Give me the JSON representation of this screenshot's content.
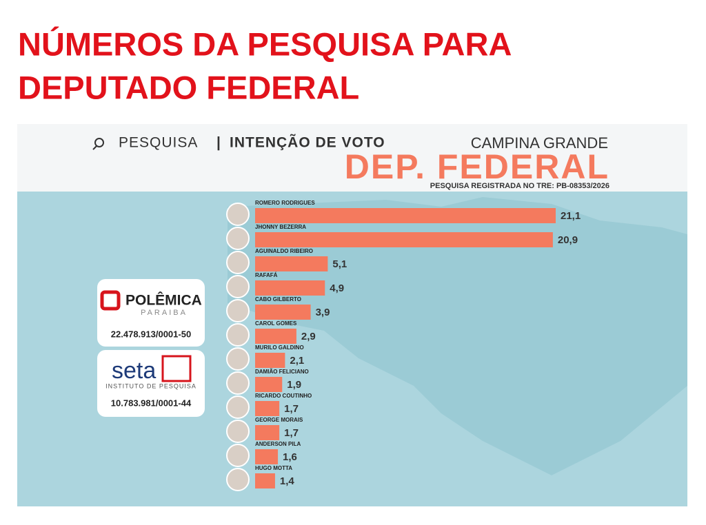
{
  "header": {
    "title_lines": [
      "NÚMEROS DA PESQUISA PARA",
      "DEPUTADO FEDERAL"
    ]
  },
  "infographic": {
    "search_label": "PESQUISA",
    "separator": "|",
    "subtitle": "INTENÇÃO DE VOTO",
    "city": "CAMPINA GRANDE",
    "office": "DEP. FEDERAL",
    "registration": "PESQUISA REGISTRADA NO TRE: PB-08353/2026",
    "sponsors": [
      {
        "name": "POLÊMICA",
        "sub": "PARAIBA",
        "id": "22.478.913/0001-50"
      },
      {
        "name": "seta",
        "sub": "INSTITUTO DE PESQUISA",
        "id": "10.783.981/0001-44"
      }
    ]
  },
  "chart_data": {
    "type": "bar",
    "orientation": "horizontal",
    "categories": [
      "ROMERO RODRIGUES",
      "JHONNY BEZERRA",
      "AGUINALDO RIBEIRO",
      "RAFAFÁ",
      "CABO GILBERTO",
      "CAROL GOMES",
      "MURILO GALDINO",
      "DAMIÃO FELICIANO",
      "RICARDO COUTINHO",
      "GEORGE MORAIS",
      "ANDERSON PILA",
      "HUGO MOTTA"
    ],
    "values": [
      21.1,
      20.9,
      5.1,
      4.9,
      3.9,
      2.9,
      2.1,
      1.9,
      1.7,
      1.7,
      1.6,
      1.4
    ],
    "value_labels": [
      "21,1",
      "20,9",
      "5,1",
      "4,9",
      "3,9",
      "2,9",
      "2,1",
      "1,9",
      "1,7",
      "1,7",
      "1,6",
      "1,4"
    ],
    "color": "#f47a5e"
  }
}
